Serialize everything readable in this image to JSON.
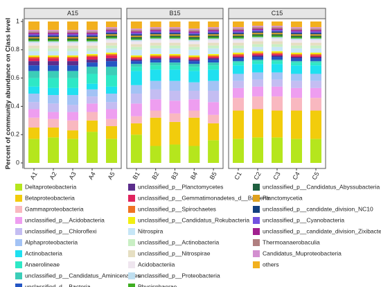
{
  "chart_data": {
    "type": "stacked-bar",
    "y_label": "Percent of community abundance on Class level",
    "facets": [
      {
        "title": "A15",
        "categories": [
          "A1",
          "A2",
          "A3",
          "A4",
          "A5"
        ]
      },
      {
        "title": "B15",
        "categories": [
          "B1",
          "B2",
          "B3",
          "B4",
          "B5"
        ]
      },
      {
        "title": "C15",
        "categories": [
          "C1",
          "C2",
          "C3",
          "C4",
          "C5"
        ]
      }
    ],
    "ylim": [
      0,
      1
    ],
    "yticks": [
      0,
      0.2,
      0.4,
      0.6,
      0.8,
      1
    ],
    "series": [
      {
        "name": "Deltaproteobacteria",
        "color": "#b5e61d",
        "values": [
          0.17,
          0.18,
          0.17,
          0.22,
          0.17,
          0.2,
          0.12,
          0.13,
          0.12,
          0.16,
          0.17,
          0.18,
          0.18,
          0.17,
          0.17
        ]
      },
      {
        "name": "Betaproteobacteria",
        "color": "#f2cc0c",
        "values": [
          0.08,
          0.07,
          0.06,
          0.08,
          0.09,
          0.08,
          0.2,
          0.16,
          0.2,
          0.12,
          0.2,
          0.2,
          0.19,
          0.2,
          0.2
        ]
      },
      {
        "name": "Gammaproteobacteria",
        "color": "#f9b8c0",
        "values": [
          0.07,
          0.06,
          0.07,
          0.06,
          0.05,
          0.05,
          0.05,
          0.06,
          0.05,
          0.06,
          0.09,
          0.09,
          0.1,
          0.09,
          0.09
        ]
      },
      {
        "name": "unclassified_p__Acidobacteria",
        "color": "#ee9ef0",
        "values": [
          0.06,
          0.05,
          0.06,
          0.06,
          0.07,
          0.09,
          0.08,
          0.09,
          0.08,
          0.09,
          0.07,
          0.07,
          0.07,
          0.07,
          0.07
        ]
      },
      {
        "name": "unclassified_p__Chloroflexi",
        "color": "#c4bdf2",
        "values": [
          0.05,
          0.06,
          0.05,
          0.05,
          0.05,
          0.07,
          0.07,
          0.07,
          0.06,
          0.08,
          0.05,
          0.05,
          0.05,
          0.05,
          0.05
        ]
      },
      {
        "name": "Alphaproteobacteria",
        "color": "#a3c3f5",
        "values": [
          0.06,
          0.06,
          0.07,
          0.05,
          0.06,
          0.06,
          0.06,
          0.07,
          0.06,
          0.07,
          0.05,
          0.05,
          0.05,
          0.05,
          0.05
        ]
      },
      {
        "name": "Actinobacteria",
        "color": "#1fe0f0",
        "values": [
          0.05,
          0.05,
          0.05,
          0.04,
          0.05,
          0.1,
          0.08,
          0.08,
          0.08,
          0.08,
          0.06,
          0.06,
          0.06,
          0.06,
          0.06
        ]
      },
      {
        "name": "Anaerolineae",
        "color": "#2ee8c6",
        "values": [
          0.06,
          0.07,
          0.07,
          0.07,
          0.08,
          0.03,
          0.03,
          0.03,
          0.03,
          0.03,
          0.02,
          0.02,
          0.02,
          0.02,
          0.02
        ]
      },
      {
        "name": "unclassified_p__Candidatus_Aminicenantes",
        "color": "#3ccdb8",
        "values": [
          0.05,
          0.05,
          0.05,
          0.05,
          0.06,
          0.02,
          0.02,
          0.02,
          0.02,
          0.02,
          0.01,
          0.01,
          0.01,
          0.01,
          0.01
        ]
      },
      {
        "name": "unclassified_d__Bacteria",
        "color": "#2456c4",
        "values": [
          0.04,
          0.04,
          0.04,
          0.03,
          0.04,
          0.02,
          0.02,
          0.02,
          0.02,
          0.02,
          0.02,
          0.02,
          0.02,
          0.02,
          0.02
        ]
      },
      {
        "name": "unclassified_p__Planctomycetes",
        "color": "#5b2d8c",
        "values": [
          0.03,
          0.03,
          0.03,
          0.02,
          0.02,
          0.01,
          0.01,
          0.01,
          0.01,
          0.01,
          0.01,
          0.01,
          0.01,
          0.01,
          0.01
        ]
      },
      {
        "name": "unclassified_p__Gemmatimonadetes_d__Bacteria",
        "color": "#e0245e",
        "values": [
          0.02,
          0.02,
          0.02,
          0.02,
          0.02,
          0.01,
          0.01,
          0.01,
          0.01,
          0.01,
          0.01,
          0.01,
          0.01,
          0.01,
          0.01
        ]
      },
      {
        "name": "unclassified_p__Spirochaetes",
        "color": "#ef7323",
        "values": [
          0.01,
          0.01,
          0.01,
          0.01,
          0.01,
          0.01,
          0.01,
          0.01,
          0.01,
          0.01,
          0.01,
          0.01,
          0.01,
          0.01,
          0.01
        ]
      },
      {
        "name": "unclassified_p__Candidatus_Rokubacteria",
        "color": "#f2ef12",
        "values": [
          0.01,
          0.01,
          0.01,
          0.01,
          0.01,
          0.01,
          0.01,
          0.01,
          0.01,
          0.01,
          0.01,
          0.01,
          0.01,
          0.01,
          0.01
        ]
      },
      {
        "name": "Nitrospira",
        "color": "#c6e6f7",
        "values": [
          0.03,
          0.03,
          0.03,
          0.02,
          0.03,
          0.04,
          0.04,
          0.04,
          0.04,
          0.04,
          0.03,
          0.03,
          0.03,
          0.03,
          0.03
        ]
      },
      {
        "name": "unclassified_p__Actinobacteria",
        "color": "#c9efc4",
        "values": [
          0.02,
          0.02,
          0.02,
          0.02,
          0.02,
          0.02,
          0.02,
          0.02,
          0.02,
          0.02,
          0.02,
          0.02,
          0.02,
          0.02,
          0.02
        ]
      },
      {
        "name": "unclassified_p__Nitrospirae",
        "color": "#e6dfc2",
        "values": [
          0.02,
          0.02,
          0.02,
          0.02,
          0.02,
          0.02,
          0.02,
          0.02,
          0.02,
          0.02,
          0.02,
          0.02,
          0.02,
          0.02,
          0.02
        ]
      },
      {
        "name": "Acidobacteriia",
        "color": "#efe6ef",
        "values": [
          0.02,
          0.02,
          0.02,
          0.02,
          0.02,
          0.02,
          0.02,
          0.02,
          0.02,
          0.02,
          0.02,
          0.02,
          0.02,
          0.02,
          0.02
        ]
      },
      {
        "name": "unclassified_p__Proteobacteria",
        "color": "#bfdff0",
        "values": [
          0.01,
          0.01,
          0.01,
          0.01,
          0.01,
          0.01,
          0.01,
          0.01,
          0.01,
          0.01,
          0.01,
          0.01,
          0.01,
          0.01,
          0.01
        ]
      },
      {
        "name": "Phycisphaerae",
        "color": "#3fae22",
        "values": [
          0.01,
          0.01,
          0.01,
          0.01,
          0.01,
          0.01,
          0.01,
          0.01,
          0.01,
          0.01,
          0.01,
          0.01,
          0.01,
          0.01,
          0.01
        ]
      },
      {
        "name": "unclassified_p__Candidatus_Abyssubacteria",
        "color": "#1f6040",
        "values": [
          0.01,
          0.01,
          0.01,
          0.01,
          0.01,
          0.01,
          0.01,
          0.01,
          0.01,
          0.01,
          0.01,
          0.01,
          0.01,
          0.01,
          0.01
        ]
      },
      {
        "name": "Planctomycetia",
        "color": "#dfa21e",
        "values": [
          0.01,
          0.01,
          0.01,
          0.01,
          0.01,
          0.01,
          0.01,
          0.01,
          0.01,
          0.01,
          0.01,
          0.01,
          0.01,
          0.01,
          0.01
        ]
      },
      {
        "name": "unclassified_p__candidate_division_NC10",
        "color": "#12407f",
        "values": [
          0.01,
          0.01,
          0.01,
          0.01,
          0.01,
          0.01,
          0.01,
          0.01,
          0.01,
          0.01,
          0.01,
          0.01,
          0.01,
          0.01,
          0.01
        ]
      },
      {
        "name": "unclassified_p__Cyanobacteria",
        "color": "#7252e0",
        "values": [
          0.01,
          0.01,
          0.01,
          0.01,
          0.01,
          0.01,
          0.01,
          0.01,
          0.01,
          0.01,
          0.01,
          0.01,
          0.01,
          0.01,
          0.01
        ]
      },
      {
        "name": "unclassified_p__candidate_division_Zixibacteria",
        "color": "#a1208f",
        "values": [
          0.01,
          0.01,
          0.01,
          0.01,
          0.01,
          0.01,
          0.01,
          0.01,
          0.01,
          0.01,
          0.01,
          0.01,
          0.01,
          0.01,
          0.01
        ]
      },
      {
        "name": "Thermoanaerobaculia",
        "color": "#b07f80",
        "values": [
          0.01,
          0.01,
          0.01,
          0.01,
          0.01,
          0.01,
          0.01,
          0.01,
          0.01,
          0.01,
          0.01,
          0.01,
          0.01,
          0.01,
          0.01
        ]
      },
      {
        "name": "Candidatus_Muproteobacteria",
        "color": "#d38fd0",
        "values": [
          0.01,
          0.01,
          0.01,
          0.01,
          0.01,
          0.01,
          0.01,
          0.01,
          0.01,
          0.01,
          0.01,
          0.01,
          0.01,
          0.01,
          0.01
        ]
      },
      {
        "name": "others",
        "color": "#f2b01e",
        "values": [
          0.06,
          0.06,
          0.06,
          0.06,
          0.04,
          0.05,
          0.04,
          0.04,
          0.05,
          0.04,
          0.04,
          0.03,
          0.03,
          0.04,
          0.04
        ]
      }
    ]
  }
}
